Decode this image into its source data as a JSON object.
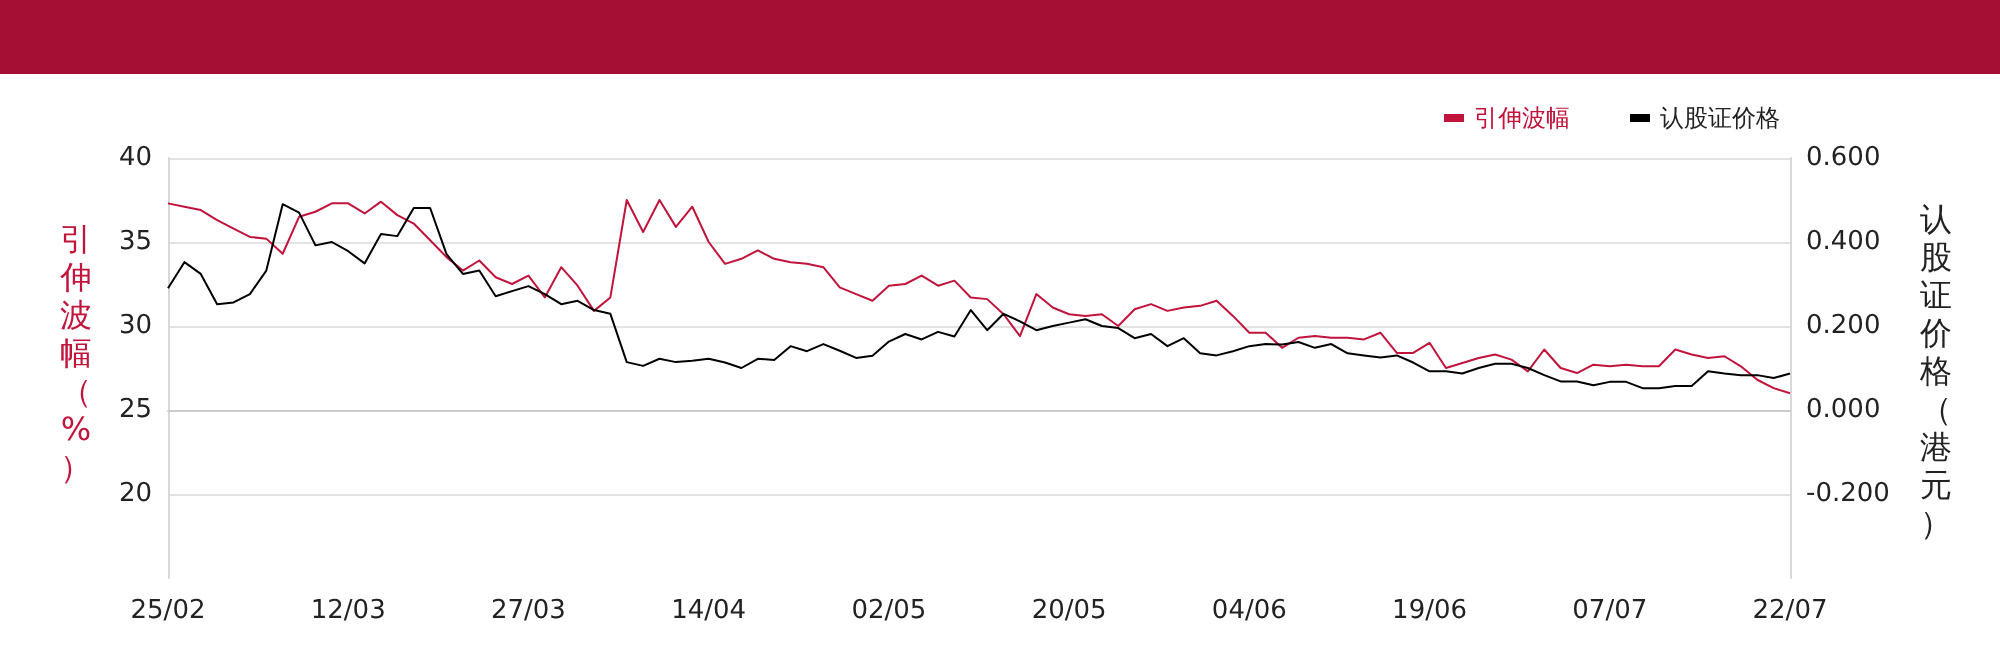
{
  "chart_data": {
    "type": "line",
    "ylabel": "引伸波幅（%）",
    "y2label": "认股证价格（港元）",
    "categories": [
      "25/02",
      null,
      null,
      null,
      null,
      null,
      null,
      null,
      null,
      null,
      null,
      "12/03",
      null,
      null,
      null,
      null,
      null,
      null,
      null,
      null,
      null,
      null,
      "27/03",
      null,
      null,
      null,
      null,
      null,
      null,
      null,
      null,
      null,
      null,
      "14/04",
      null,
      null,
      null,
      null,
      null,
      null,
      null,
      null,
      null,
      null,
      "02/05",
      null,
      null,
      null,
      null,
      null,
      null,
      null,
      null,
      null,
      null,
      "20/05",
      null,
      null,
      null,
      null,
      null,
      null,
      null,
      null,
      null,
      null,
      "04/06",
      null,
      null,
      null,
      null,
      null,
      null,
      null,
      null,
      null,
      null,
      "19/06",
      null,
      null,
      null,
      null,
      null,
      null,
      null,
      null,
      null,
      null,
      "07/07",
      null,
      null,
      null,
      null,
      null,
      null,
      null,
      null,
      null,
      null,
      "22/07"
    ],
    "series": [
      {
        "name": "引伸波幅",
        "color": "#c0143c",
        "values": [
          37.3,
          37.1,
          36.9,
          36.3,
          35.8,
          35.3,
          35.2,
          34.3,
          36.5,
          36.8,
          37.3,
          37.3,
          36.7,
          37.4,
          36.6,
          36.1,
          35.1,
          34.1,
          33.3,
          33.9,
          32.9,
          32.5,
          33.0,
          31.7,
          33.5,
          32.4,
          30.9,
          31.7,
          37.5,
          35.6,
          37.5,
          35.9,
          37.1,
          35.0,
          33.7,
          34.0,
          34.5,
          34.0,
          33.8,
          33.7,
          33.5,
          32.3,
          31.9,
          31.5,
          32.4,
          32.5,
          33.0,
          32.4,
          32.7,
          31.7,
          31.6,
          30.7,
          29.4,
          31.9,
          31.1,
          30.7,
          30.6,
          30.7,
          30.0,
          31.0,
          31.3,
          30.9,
          31.1,
          31.2,
          31.5,
          30.6,
          29.6,
          29.6,
          28.7,
          29.3,
          29.4,
          29.3,
          29.3,
          29.2,
          29.6,
          28.4,
          28.4,
          29.0,
          27.5,
          27.8,
          28.1,
          28.3,
          28.0,
          27.3,
          28.6,
          27.5,
          27.2,
          27.7,
          27.6,
          27.7,
          27.6,
          27.6,
          28.6,
          28.3,
          28.1,
          28.2,
          27.6,
          26.8,
          26.3,
          26.0
        ]
      },
      {
        "name": "认股证价格",
        "color": "#000000",
        "axis": "y2",
        "values": [
          0.29,
          0.352,
          0.324,
          0.252,
          0.256,
          0.276,
          0.332,
          0.49,
          0.47,
          0.392,
          0.4,
          0.378,
          0.349,
          0.419,
          0.414,
          0.481,
          0.481,
          0.371,
          0.324,
          0.332,
          0.271,
          0.283,
          0.295,
          0.276,
          0.252,
          0.26,
          0.238,
          0.229,
          0.114,
          0.105,
          0.122,
          0.114,
          0.117,
          0.122,
          0.113,
          0.1,
          0.122,
          0.119,
          0.152,
          0.14,
          0.157,
          0.141,
          0.124,
          0.129,
          0.163,
          0.181,
          0.168,
          0.186,
          0.175,
          0.238,
          0.19,
          0.229,
          0.211,
          0.19,
          0.2,
          0.208,
          0.216,
          0.2,
          0.195,
          0.171,
          0.181,
          0.152,
          0.171,
          0.135,
          0.13,
          0.14,
          0.152,
          0.157,
          0.156,
          0.162,
          0.148,
          0.157,
          0.135,
          0.13,
          0.125,
          0.13,
          0.113,
          0.092,
          0.092,
          0.087,
          0.1,
          0.11,
          0.11,
          0.1,
          0.083,
          0.068,
          0.068,
          0.059,
          0.067,
          0.067,
          0.052,
          0.052,
          0.057,
          0.057,
          0.092,
          0.087,
          0.083,
          0.083,
          0.076,
          0.087
        ]
      }
    ],
    "ylim": [
      15,
      40
    ],
    "yticks": [
      20,
      25,
      30,
      35,
      40
    ],
    "y2lim": [
      -0.4,
      0.6
    ],
    "y2ticks": [
      {
        "value": -0.2,
        "label": "-0.200"
      },
      {
        "value": 0,
        "label": "0.000"
      },
      {
        "value": 0.2,
        "label": "0.200"
      },
      {
        "value": 0.4,
        "label": "0.400"
      },
      {
        "value": 0.6,
        "label": "0.600"
      }
    ],
    "grid": "y",
    "legend": "top right",
    "marker": "none",
    "line_style": "solid"
  }
}
